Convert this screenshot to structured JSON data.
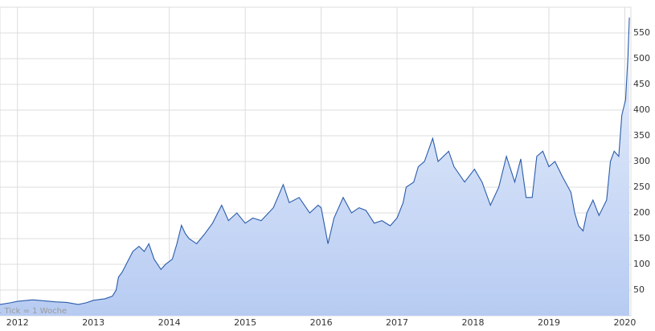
{
  "chart_data": {
    "type": "area",
    "note": "1 Tick = 1 Woche",
    "x": [
      2011.77,
      2011.9,
      2012.0,
      2012.2,
      2012.35,
      2012.5,
      2012.65,
      2012.8,
      2012.9,
      2013.0,
      2013.15,
      2013.25,
      2013.3,
      2013.33,
      2013.38,
      2013.45,
      2013.52,
      2013.6,
      2013.67,
      2013.73,
      2013.8,
      2013.89,
      2013.95,
      2014.04,
      2014.1,
      2014.16,
      2014.21,
      2014.26,
      2014.36,
      2014.47,
      2014.57,
      2014.69,
      2014.78,
      2014.89,
      2015.0,
      2015.1,
      2015.21,
      2015.37,
      2015.5,
      2015.58,
      2015.71,
      2015.85,
      2015.96,
      2016.0,
      2016.09,
      2016.17,
      2016.29,
      2016.4,
      2016.5,
      2016.59,
      2016.7,
      2016.8,
      2016.91,
      2017.0,
      2017.08,
      2017.12,
      2017.22,
      2017.28,
      2017.36,
      2017.47,
      2017.54,
      2017.68,
      2017.75,
      2017.89,
      2018.02,
      2018.12,
      2018.23,
      2018.34,
      2018.44,
      2018.55,
      2018.63,
      2018.7,
      2018.78,
      2018.84,
      2018.92,
      2019.0,
      2019.08,
      2019.18,
      2019.29,
      2019.34,
      2019.39,
      2019.45,
      2019.5,
      2019.58,
      2019.66,
      2019.76,
      2019.81,
      2019.86,
      2019.92,
      2019.96,
      2020.01,
      2020.04,
      2020.06
    ],
    "values": [
      22,
      25,
      28,
      31,
      29,
      27,
      26,
      22,
      25,
      30,
      33,
      38,
      50,
      75,
      85,
      105,
      125,
      135,
      125,
      140,
      110,
      90,
      100,
      110,
      140,
      176,
      160,
      150,
      140,
      160,
      180,
      215,
      185,
      200,
      180,
      190,
      185,
      210,
      255,
      220,
      230,
      200,
      215,
      210,
      140,
      190,
      230,
      200,
      210,
      205,
      180,
      185,
      175,
      190,
      220,
      250,
      260,
      290,
      300,
      345,
      300,
      320,
      290,
      260,
      285,
      260,
      215,
      250,
      310,
      260,
      305,
      230,
      230,
      310,
      320,
      290,
      300,
      270,
      240,
      200,
      175,
      165,
      200,
      225,
      195,
      225,
      300,
      320,
      310,
      390,
      420,
      500,
      580
    ],
    "color": "#2a5caa",
    "xlim": [
      2011.77,
      2020.08
    ],
    "xticks": [
      2012,
      2013,
      2014,
      2015,
      2016,
      2017,
      2018,
      2019,
      2020
    ],
    "ylim": [
      0,
      600
    ],
    "yticks": [
      50,
      100,
      150,
      200,
      250,
      300,
      350,
      400,
      450,
      500,
      550
    ],
    "grid": true
  }
}
